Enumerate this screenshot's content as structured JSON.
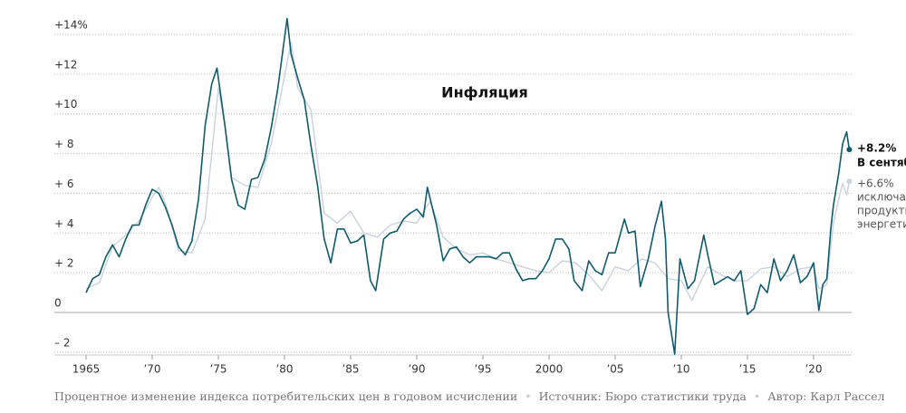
{
  "chart_data": {
    "type": "line",
    "title": "Инфляция",
    "ylim": [
      -3,
      14.5
    ],
    "yticks": [
      {
        "value": 14,
        "label": "+14%"
      },
      {
        "value": 12,
        "label": "+12"
      },
      {
        "value": 10,
        "label": "+10"
      },
      {
        "value": 8,
        "label": "+ 8"
      },
      {
        "value": 6,
        "label": "+ 6"
      },
      {
        "value": 4,
        "label": "+ 4"
      },
      {
        "value": 2,
        "label": "+ 2"
      },
      0,
      {
        "value": -2,
        "label": "– 2"
      }
    ],
    "xlim": [
      1965,
      2023
    ],
    "xticks": [
      1965,
      {
        "value": 1970,
        "label": "’70"
      },
      {
        "value": 1975,
        "label": "’75"
      },
      {
        "value": 1980,
        "label": "’80"
      },
      {
        "value": 1985,
        "label": "’85"
      },
      {
        "value": 1990,
        "label": "’90"
      },
      {
        "value": 1995,
        "label": "’95"
      },
      2000,
      {
        "value": 2005,
        "label": "’05"
      },
      {
        "value": 2010,
        "label": "’10"
      },
      {
        "value": 2015,
        "label": "’15"
      },
      {
        "value": 2020,
        "label": "’20"
      }
    ],
    "grid": true,
    "series": [
      {
        "color": "#c9d2df",
        "x": [
          1965,
          1966,
          1967,
          1968,
          1969,
          1970,
          1970.5,
          1971,
          1972,
          1973,
          1974,
          1975,
          1975.5,
          1976,
          1977,
          1978,
          1979,
          1980,
          1980.5,
          1981,
          1982,
          1983,
          1984,
          1985,
          1986,
          1987,
          1988,
          1989,
          1990,
          1991,
          1992,
          1993,
          1994,
          1995,
          1996,
          1997,
          1998,
          1999,
          2000,
          2001,
          2002,
          2003,
          2004,
          2005,
          2006,
          2007,
          2008,
          2009,
          2010,
          2010.8,
          2011.5,
          2012,
          2013,
          2014,
          2015,
          2016,
          2017,
          2018,
          2019,
          2020,
          2020.4,
          2021,
          2021.5,
          2022,
          2022.2,
          2022.5,
          2022.7
        ],
        "values": [
          1.2,
          1.5,
          3.3,
          3.9,
          4.6,
          5.8,
          6.3,
          5.5,
          3.1,
          3.0,
          4.7,
          11.3,
          9.4,
          6.8,
          6.4,
          6.3,
          8.5,
          11.9,
          13.6,
          11.3,
          10.2,
          5.0,
          4.5,
          5.1,
          4.0,
          3.8,
          4.4,
          4.6,
          4.5,
          5.6,
          3.8,
          3.2,
          2.9,
          3.0,
          2.7,
          2.5,
          2.3,
          2.1,
          2.0,
          2.6,
          2.5,
          1.9,
          1.1,
          2.3,
          2.1,
          2.7,
          2.5,
          1.7,
          1.6,
          0.6,
          1.6,
          2.3,
          1.9,
          1.6,
          1.6,
          2.2,
          2.3,
          1.8,
          2.2,
          2.3,
          1.2,
          1.4,
          4.5,
          6.0,
          6.5,
          5.9,
          6.6
        ]
      },
      {
        "color": "#0f5b6d",
        "x": [
          1965,
          1965.5,
          1966,
          1966.5,
          1967,
          1967.5,
          1968,
          1968.5,
          1969,
          1969.5,
          1970,
          1970.5,
          1971,
          1971.5,
          1972,
          1972.5,
          1973,
          1973.5,
          1974,
          1974.5,
          1974.9,
          1975.5,
          1976,
          1976.5,
          1977,
          1977.5,
          1978,
          1978.5,
          1979,
          1979.5,
          1980.2,
          1980.5,
          1981,
          1981.5,
          1982,
          1982.5,
          1983,
          1983.5,
          1984,
          1984.5,
          1985,
          1985.5,
          1986,
          1986.5,
          1986.9,
          1987.5,
          1988,
          1988.5,
          1989,
          1989.5,
          1990,
          1990.5,
          1990.8,
          1991.5,
          1992,
          1992.5,
          1993,
          1993.5,
          1994,
          1994.5,
          1995,
          1995.5,
          1996,
          1996.5,
          1997,
          1997.5,
          1998,
          1998.5,
          1999,
          1999.5,
          2000,
          2000.5,
          2001,
          2001.5,
          2001.9,
          2002.5,
          2003,
          2003.5,
          2004,
          2004.5,
          2005,
          2005.7,
          2006,
          2006.5,
          2006.9,
          2007.5,
          2008,
          2008.5,
          2008.8,
          2009,
          2009.5,
          2009.9,
          2010.5,
          2011,
          2011.7,
          2012,
          2012.5,
          2013,
          2013.5,
          2014,
          2014.5,
          2015,
          2015.5,
          2016,
          2016.5,
          2017,
          2017.5,
          2018,
          2018.5,
          2019,
          2019.5,
          2020,
          2020.4,
          2020.7,
          2021,
          2021.3,
          2021.5,
          2021.9,
          2022.2,
          2022.5,
          2022.7
        ],
        "values": [
          1.0,
          1.7,
          1.9,
          2.8,
          3.4,
          2.8,
          3.7,
          4.4,
          4.4,
          5.4,
          6.2,
          6.0,
          5.3,
          4.4,
          3.3,
          2.9,
          3.6,
          5.7,
          9.4,
          11.5,
          12.3,
          9.4,
          6.7,
          5.4,
          5.2,
          6.7,
          6.8,
          7.7,
          9.3,
          11.3,
          14.8,
          13.0,
          11.8,
          10.7,
          8.4,
          6.4,
          3.7,
          2.5,
          4.2,
          4.2,
          3.5,
          3.6,
          3.9,
          1.6,
          1.1,
          3.7,
          4.0,
          4.1,
          4.7,
          5.0,
          5.2,
          4.8,
          6.3,
          4.4,
          2.6,
          3.2,
          3.3,
          2.8,
          2.5,
          2.8,
          2.8,
          2.8,
          2.7,
          3.0,
          3.0,
          2.2,
          1.6,
          1.7,
          1.7,
          2.1,
          2.7,
          3.7,
          3.7,
          3.2,
          1.6,
          1.1,
          2.6,
          2.1,
          1.9,
          3.0,
          3.0,
          4.7,
          4.0,
          4.1,
          1.3,
          2.7,
          4.3,
          5.6,
          3.7,
          0.0,
          -2.1,
          2.7,
          1.2,
          1.6,
          3.9,
          2.9,
          1.4,
          1.6,
          1.8,
          1.6,
          2.1,
          -0.1,
          0.2,
          1.4,
          1.0,
          2.7,
          1.6,
          2.1,
          2.9,
          1.5,
          1.8,
          2.5,
          0.1,
          1.4,
          1.7,
          4.2,
          5.4,
          7.0,
          8.5,
          9.1,
          8.2
        ]
      }
    ],
    "annotations": [
      {
        "text": "+8.2%",
        "sub": "В сентябре"
      },
      {
        "text": "+6.6%",
        "lines": [
          "исключая",
          "продукты и",
          "энергетику"
        ]
      }
    ],
    "footer": [
      "Процентное изменение индекса потребительских цен в годовом исчислении",
      "Источник: Бюро статистики труда",
      "Автор: Карл Рассел"
    ]
  }
}
